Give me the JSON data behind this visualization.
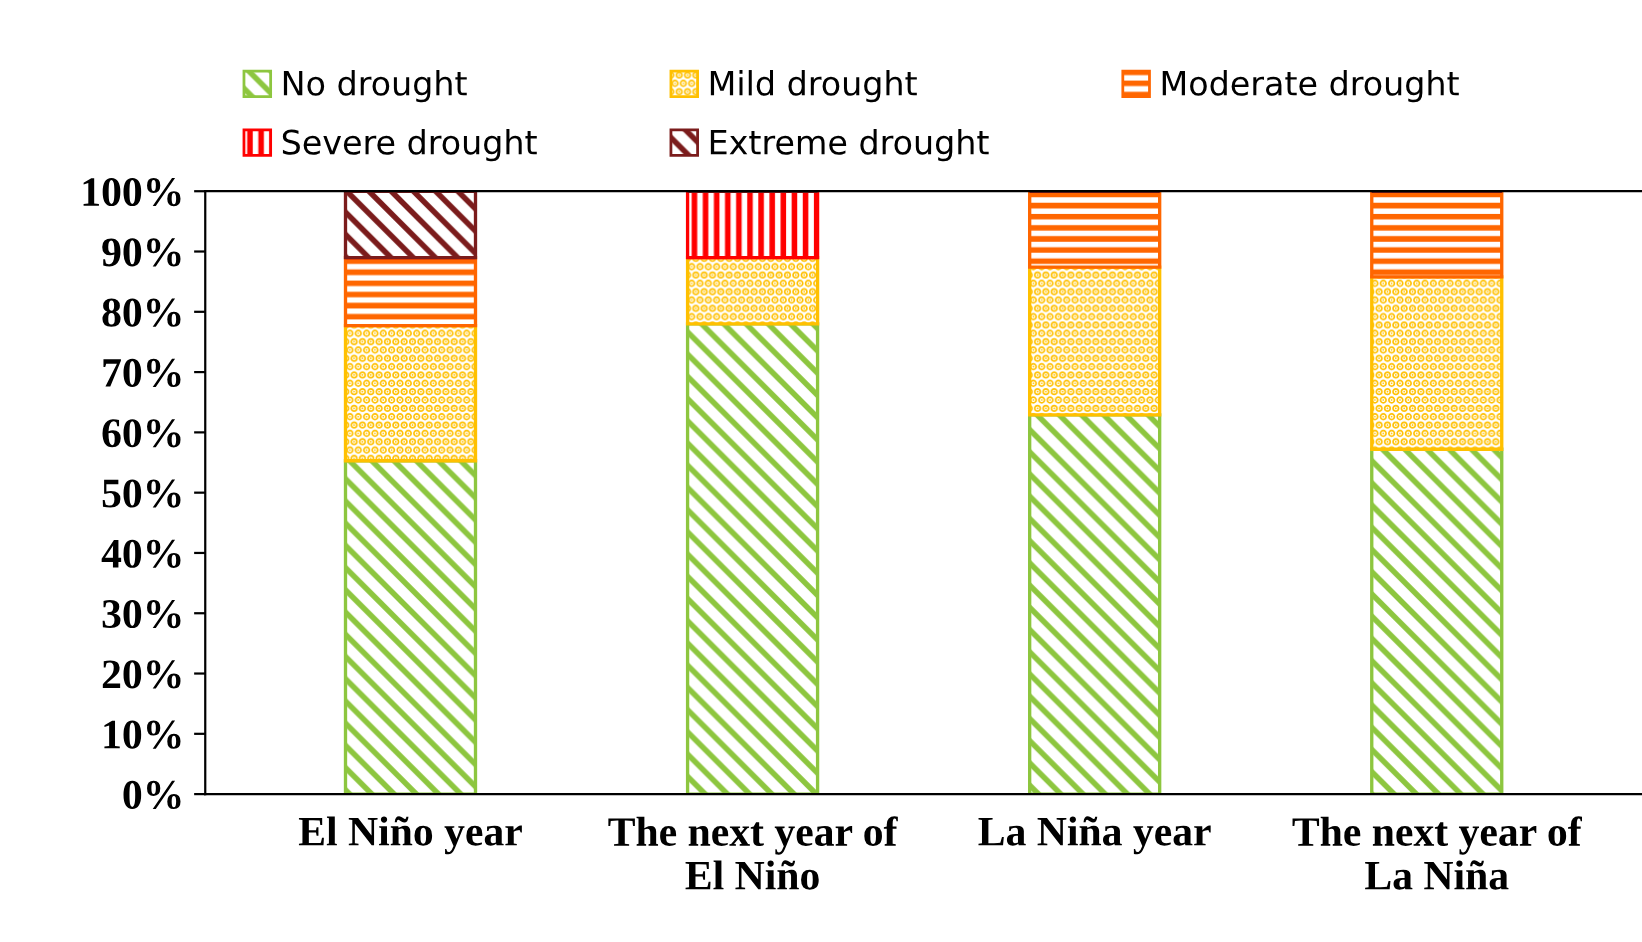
{
  "chart_data": {
    "type": "bar",
    "stacked": true,
    "categories": [
      "El Niño year",
      "The next year of\nEl Niño",
      "La Niña year",
      "The next year of\nLa Niña"
    ],
    "series": [
      {
        "name": "No drought",
        "color": "#8dc63f",
        "values": [
          55.3,
          78.0,
          62.9,
          57.2
        ]
      },
      {
        "name": "Mild drought",
        "color": "#ffc000",
        "values": [
          22.4,
          11.0,
          24.5,
          28.6
        ]
      },
      {
        "name": "Moderate drought",
        "color": "#ff6600",
        "values": [
          11.3,
          0,
          12.6,
          14.2
        ]
      },
      {
        "name": "Severe drought",
        "color": "#ff0000",
        "values": [
          0,
          11.0,
          0,
          0
        ]
      },
      {
        "name": "Extreme drought",
        "color": "#7b1c1c",
        "values": [
          11.0,
          0,
          0,
          0
        ]
      }
    ],
    "ylim": [
      0,
      100
    ],
    "yticks": [
      {
        "value": 0,
        "label": "0%"
      },
      {
        "value": 10,
        "label": "10%"
      },
      {
        "value": 20,
        "label": "20%"
      },
      {
        "value": 30,
        "label": "30%"
      },
      {
        "value": 40,
        "label": "40%"
      },
      {
        "value": 50,
        "label": "50%"
      },
      {
        "value": 60,
        "label": "60%"
      },
      {
        "value": 70,
        "label": "70%"
      },
      {
        "value": 80,
        "label": "80%"
      },
      {
        "value": 90,
        "label": "90%"
      },
      {
        "value": 100,
        "label": "100%"
      }
    ],
    "legend": "top"
  }
}
